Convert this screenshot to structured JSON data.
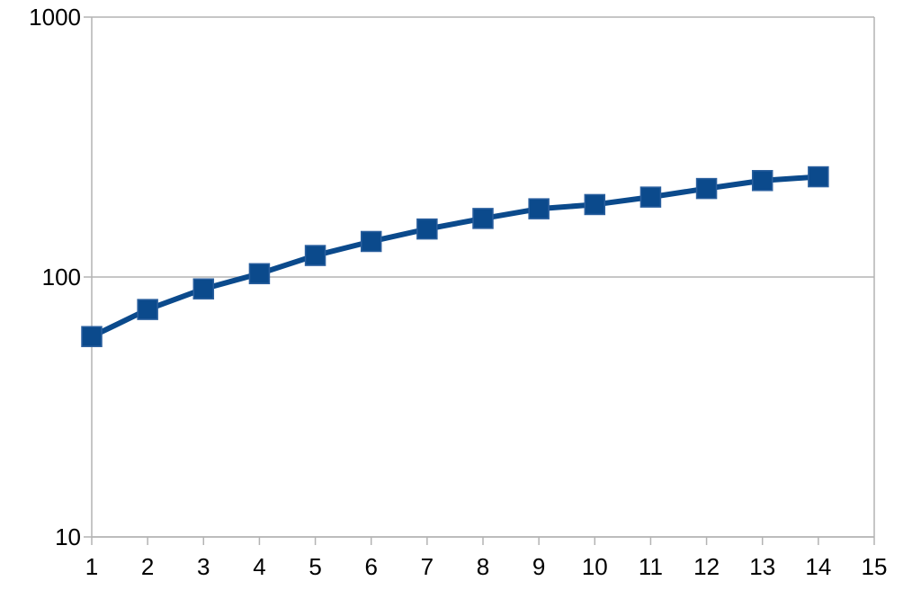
{
  "chart_data": {
    "type": "line",
    "title": "",
    "xlabel": "",
    "ylabel": "",
    "y_scale": "log",
    "xlim": [
      1,
      15
    ],
    "ylim": [
      10,
      1000
    ],
    "x_ticks": [
      "1",
      "2",
      "3",
      "4",
      "5",
      "6",
      "7",
      "8",
      "9",
      "10",
      "11",
      "12",
      "13",
      "14",
      "15"
    ],
    "y_ticks": [
      "10",
      "100",
      "1000"
    ],
    "grid": "horizontal major lines at decades",
    "legend": "none",
    "series": [
      {
        "color": "#0b4a8c",
        "marker": "square",
        "x": [
          1,
          2,
          3,
          4,
          5,
          6,
          7,
          8,
          9,
          10,
          11,
          12,
          13,
          14
        ],
        "y": [
          59,
          75,
          90,
          103,
          121,
          137,
          153,
          168,
          183,
          190,
          203,
          219,
          235,
          243
        ]
      }
    ]
  }
}
